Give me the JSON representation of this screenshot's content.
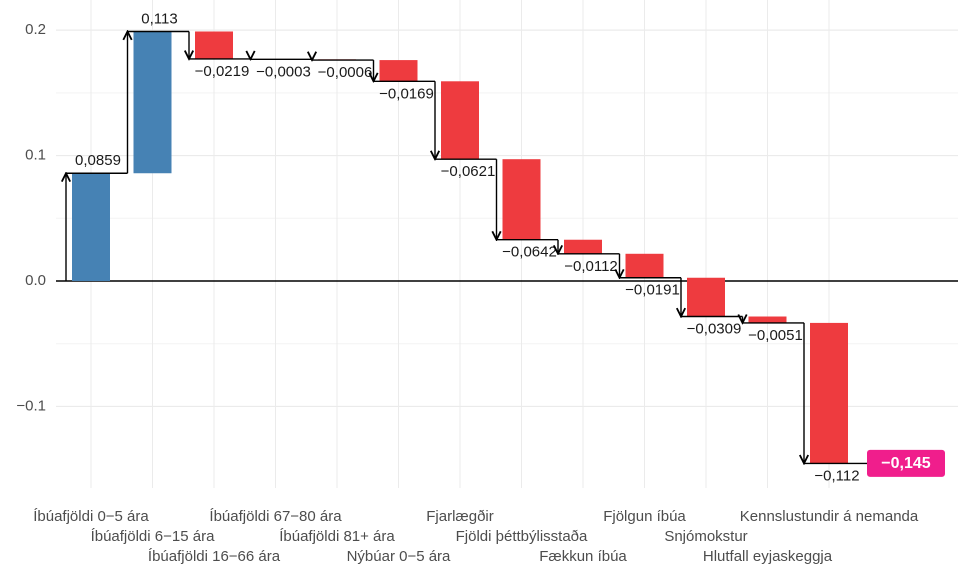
{
  "chart_data": {
    "type": "waterfall",
    "categories": [
      "Íbúafjöldi 0−5 ára",
      "Íbúafjöldi 6−15 ára",
      "Íbúafjöldi 16−66 ára",
      "Íbúafjöldi 67−80 ára",
      "Íbúafjöldi 81+ ára",
      "Nýbúar 0−5 ára",
      "Fjarlægðir",
      "Fjöldi þéttbýlisstaða",
      "Fækkun íbúa",
      "Fjölgun íbúa",
      "Snjómokstur",
      "Hlutfall eyjaskeggja",
      "Kennslustundir á nemanda"
    ],
    "values": [
      0.0859,
      0.113,
      -0.0219,
      -0.0003,
      -0.0006,
      -0.0169,
      -0.0621,
      -0.0642,
      -0.0112,
      -0.0191,
      -0.0309,
      -0.0051,
      -0.112
    ],
    "value_labels": [
      "0,0859",
      "0,113",
      "−0,0219",
      "−0,0003",
      "−0,0006",
      "−0,0169",
      "−0,0621",
      "−0,0642",
      "−0,0112",
      "−0,0191",
      "−0,0309",
      "−0,0051",
      "−0,112"
    ],
    "total": -0.145,
    "total_label": "−0,145",
    "positive_color": "#4682b4",
    "negative_color": "#ee3b3f",
    "total_color": "#f01e8c",
    "ylim": [
      -0.165,
      0.224
    ],
    "yticks": [
      {
        "value": -0.1,
        "label": "−0.1"
      },
      {
        "value": 0.0,
        "label": "0.0"
      },
      0.1,
      0.2
    ],
    "grid": true
  }
}
